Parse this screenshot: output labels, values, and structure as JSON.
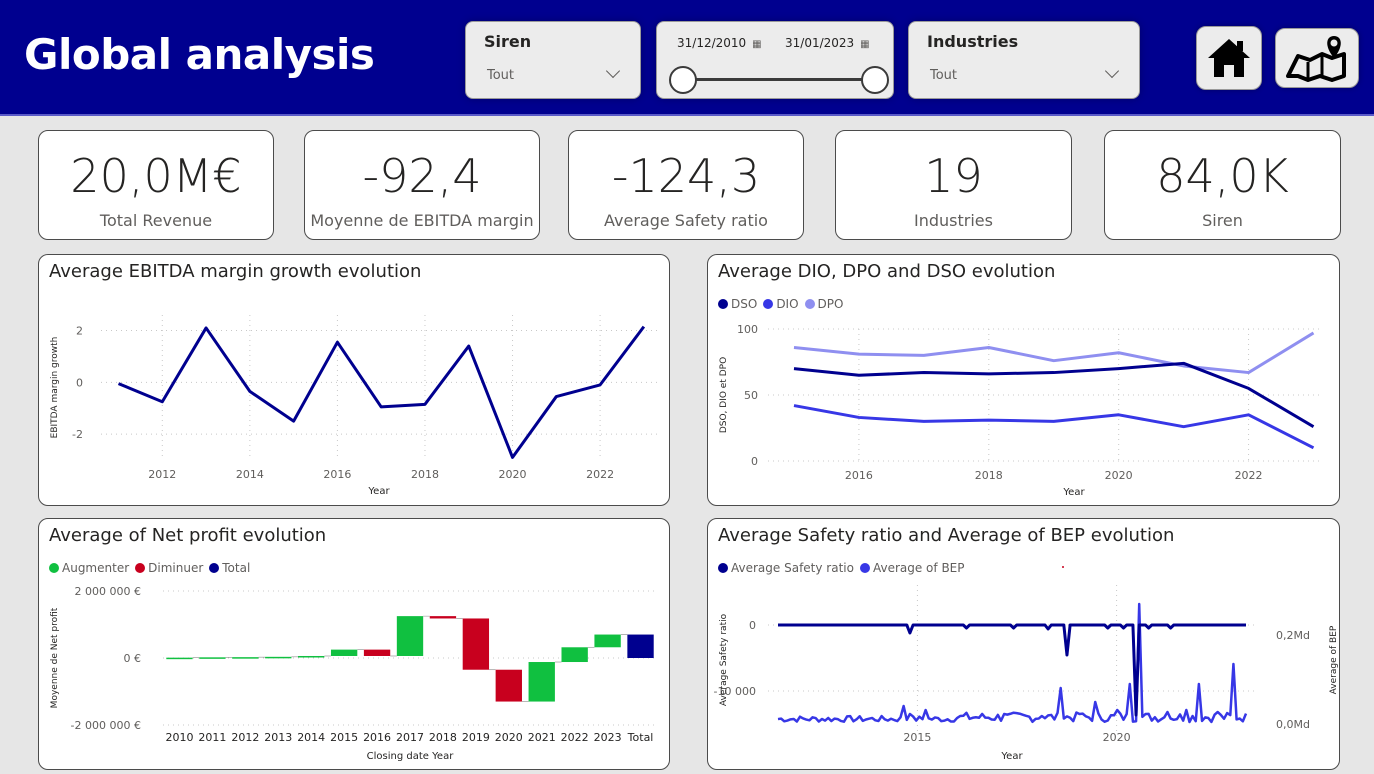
{
  "header": {
    "title": "Global analysis",
    "siren_slicer": {
      "title": "Siren",
      "value": "Tout"
    },
    "date_slicer": {
      "start": "31/12/2010",
      "end": "31/01/2023"
    },
    "industries_slicer": {
      "title": "Industries",
      "value": "Tout"
    },
    "nav": {
      "home_icon": "home-icon",
      "map_icon": "map-pin-icon"
    }
  },
  "kpis": [
    {
      "value": "20,0M€",
      "label": "Total Revenue"
    },
    {
      "value": "-92,4",
      "label": "Moyenne de EBITDA margin"
    },
    {
      "value": "-124,3",
      "label": "Average Safety ratio"
    },
    {
      "value": "19",
      "label": "Industries"
    },
    {
      "value": "84,0K",
      "label": "Siren"
    }
  ],
  "chart_data": [
    {
      "type": "line",
      "title": "Average EBITDA margin growth evolution",
      "xlabel": "Year",
      "ylabel": "EBITDA margin growth",
      "x": [
        2011,
        2012,
        2013,
        2014,
        2015,
        2016,
        2017,
        2018,
        2019,
        2020,
        2021,
        2022,
        2023
      ],
      "series": [
        {
          "values": [
            -0.05,
            -0.75,
            2.1,
            -0.35,
            -1.5,
            1.55,
            -0.95,
            -0.85,
            1.4,
            -2.9,
            -0.55,
            -0.1,
            2.15
          ],
          "color": "#00008f"
        }
      ],
      "xticks": [
        "2012",
        "2014",
        "2016",
        "2018",
        "2020",
        "2022"
      ],
      "yticks": [
        "2",
        "0",
        "-2"
      ],
      "ylim": [
        -3,
        2.6
      ],
      "grid": true
    },
    {
      "type": "line",
      "title": "Average DIO, DPO and DSO evolution",
      "xlabel": "Year",
      "ylabel": "DSO, DIO et DPO",
      "x": [
        2015,
        2016,
        2017,
        2018,
        2019,
        2020,
        2021,
        2022,
        2023
      ],
      "series": [
        {
          "name": "DSO",
          "color": "#00008f",
          "values": [
            70,
            65,
            67,
            66,
            67,
            70,
            74,
            55,
            26
          ]
        },
        {
          "name": "DIO",
          "color": "#3737e6",
          "values": [
            42,
            33,
            30,
            31,
            30,
            35,
            26,
            35,
            10
          ]
        },
        {
          "name": "DPO",
          "color": "#8f8ff0",
          "values": [
            86,
            81,
            80,
            86,
            76,
            82,
            72,
            67,
            97
          ]
        }
      ],
      "xticks": [
        "2016",
        "2018",
        "2020",
        "2022"
      ],
      "yticks": [
        "100",
        "50",
        "0"
      ],
      "ylim": [
        0,
        100
      ],
      "grid": true,
      "legend": "top-left"
    },
    {
      "type": "bar",
      "title": "Average of Net profit evolution",
      "xlabel": "Closing date Year",
      "ylabel": "Moyenne de Net profit",
      "legend_items": [
        {
          "name": "Augmenter",
          "color": "#10c040"
        },
        {
          "name": "Diminuer",
          "color": "#c8001e"
        },
        {
          "name": "Total",
          "color": "#00008f"
        }
      ],
      "categories": [
        "2010",
        "2011",
        "2012",
        "2013",
        "2014",
        "2015",
        "2016",
        "2017",
        "2018",
        "2019",
        "2020",
        "2021",
        "2022",
        "2023",
        "Total"
      ],
      "waterfall": [
        {
          "start": 0,
          "end": 10000,
          "kind": "up"
        },
        {
          "start": 10000,
          "end": 20000,
          "kind": "up"
        },
        {
          "start": 20000,
          "end": 25000,
          "kind": "up"
        },
        {
          "start": 25000,
          "end": 35000,
          "kind": "up"
        },
        {
          "start": 35000,
          "end": 60000,
          "kind": "up"
        },
        {
          "start": 60000,
          "end": 250000,
          "kind": "up"
        },
        {
          "start": 250000,
          "end": 60000,
          "kind": "down"
        },
        {
          "start": 60000,
          "end": 1250000,
          "kind": "up"
        },
        {
          "start": 1250000,
          "end": 1180000,
          "kind": "down"
        },
        {
          "start": 1180000,
          "end": -350000,
          "kind": "down"
        },
        {
          "start": -350000,
          "end": -1300000,
          "kind": "down"
        },
        {
          "start": -1300000,
          "end": -120000,
          "kind": "up"
        },
        {
          "start": -120000,
          "end": 320000,
          "kind": "up"
        },
        {
          "start": 320000,
          "end": 700000,
          "kind": "up"
        },
        {
          "start": 0,
          "end": 700000,
          "kind": "total"
        }
      ],
      "yticks": [
        "2 000 000 €",
        "0 €",
        "-2 000 000 €"
      ],
      "ylim": [
        -2000000,
        2000000
      ],
      "grid": true
    },
    {
      "type": "line",
      "title": "Average Safety ratio and Average of BEP evolution",
      "xlabel": "Year",
      "ylabel": "Average Safety ratio",
      "ylabel2": "Average of BEP",
      "series": [
        {
          "name": "Average Safety ratio",
          "color": "#00008f"
        },
        {
          "name": "Average of BEP",
          "color": "#3737e6"
        }
      ],
      "xticks": [
        "2015",
        "2020"
      ],
      "yticks": [
        "0",
        "-10 000"
      ],
      "y2ticks": [
        "0,2Md",
        "0,0Md"
      ],
      "grid": true,
      "legend": "top-left"
    }
  ]
}
